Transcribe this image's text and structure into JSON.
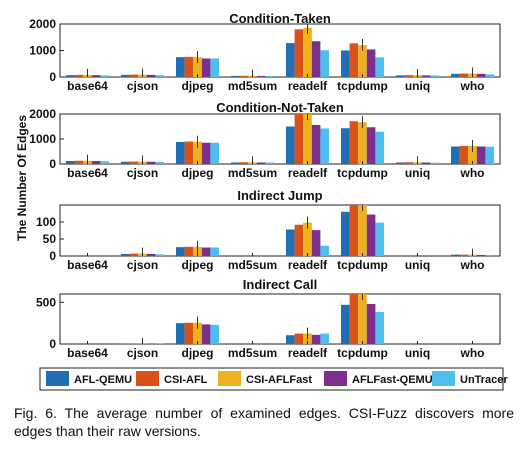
{
  "figure": {
    "ylabel": "The Number Of Edges",
    "caption": "Fig. 6. The average number of examined edges. CSI-Fuzz discovers more edges than their raw versions.",
    "colors": [
      "#1f6fb4",
      "#d95319",
      "#edb120",
      "#7e2f8e",
      "#4dbeee"
    ]
  },
  "chart_data": [
    {
      "type": "bar",
      "title": "Condition-Taken",
      "categories": [
        "base64",
        "cjson",
        "djpeg",
        "md5sum",
        "readelf",
        "tcpdump",
        "uniq",
        "who"
      ],
      "ylim": [
        0,
        2000
      ],
      "yticks": [
        0,
        1000,
        2000
      ],
      "series": [
        {
          "name": "AFL-QEMU",
          "values": [
            70,
            80,
            750,
            40,
            1280,
            1000,
            60,
            120
          ]
        },
        {
          "name": "CSI-AFL",
          "values": [
            80,
            90,
            760,
            45,
            1800,
            1270,
            70,
            130
          ]
        },
        {
          "name": "CSI-AFLFast",
          "values": [
            80,
            90,
            750,
            45,
            1860,
            1210,
            70,
            130
          ]
        },
        {
          "name": "AFLFast-QEMU",
          "values": [
            70,
            80,
            700,
            40,
            1350,
            1040,
            60,
            120
          ]
        },
        {
          "name": "UnTracer",
          "values": [
            60,
            70,
            700,
            40,
            1010,
            740,
            60,
            100
          ]
        }
      ]
    },
    {
      "type": "bar",
      "title": "Condition-Not-Taken",
      "categories": [
        "base64",
        "cjson",
        "djpeg",
        "md5sum",
        "readelf",
        "tcpdump",
        "uniq",
        "who"
      ],
      "ylim": [
        0,
        2000
      ],
      "yticks": [
        0,
        1000,
        2000
      ],
      "series": [
        {
          "name": "AFL-QEMU",
          "values": [
            120,
            90,
            880,
            60,
            1500,
            1430,
            60,
            700
          ]
        },
        {
          "name": "CSI-AFL",
          "values": [
            130,
            100,
            900,
            70,
            2020,
            1710,
            70,
            720
          ]
        },
        {
          "name": "CSI-AFLFast",
          "values": [
            130,
            100,
            890,
            70,
            2050,
            1670,
            70,
            720
          ]
        },
        {
          "name": "AFLFast-QEMU",
          "values": [
            120,
            90,
            850,
            60,
            1560,
            1470,
            60,
            700
          ]
        },
        {
          "name": "UnTracer",
          "values": [
            110,
            80,
            850,
            60,
            1420,
            1290,
            50,
            690
          ]
        }
      ]
    },
    {
      "type": "bar",
      "title": "Indirect Jump",
      "categories": [
        "base64",
        "cjson",
        "djpeg",
        "md5sum",
        "readelf",
        "tcpdump",
        "uniq",
        "who"
      ],
      "ylim": [
        0,
        150
      ],
      "yticks": [
        0,
        50,
        100
      ],
      "series": [
        {
          "name": "AFL-QEMU",
          "values": [
            0,
            6,
            26,
            0,
            78,
            130,
            0,
            4
          ]
        },
        {
          "name": "CSI-AFL",
          "values": [
            0,
            7,
            27,
            0,
            92,
            150,
            0,
            4
          ]
        },
        {
          "name": "CSI-AFLFast",
          "values": [
            0,
            7,
            27,
            0,
            98,
            150,
            0,
            4
          ]
        },
        {
          "name": "AFLFast-QEMU",
          "values": [
            0,
            6,
            25,
            0,
            76,
            122,
            0,
            3
          ]
        },
        {
          "name": "UnTracer",
          "values": [
            0,
            5,
            25,
            0,
            30,
            98,
            0,
            3
          ]
        }
      ]
    },
    {
      "type": "bar",
      "title": "Indirect Call",
      "categories": [
        "base64",
        "cjson",
        "djpeg",
        "md5sum",
        "readelf",
        "tcpdump",
        "uniq",
        "who"
      ],
      "ylim": [
        0,
        600
      ],
      "yticks": [
        0,
        500
      ],
      "series": [
        {
          "name": "AFL-QEMU",
          "values": [
            0,
            3,
            250,
            0,
            105,
            470,
            0,
            0
          ]
        },
        {
          "name": "CSI-AFL",
          "values": [
            0,
            3,
            255,
            0,
            125,
            600,
            0,
            0
          ]
        },
        {
          "name": "CSI-AFLFast",
          "values": [
            0,
            3,
            255,
            0,
            125,
            600,
            0,
            0
          ]
        },
        {
          "name": "AFLFast-QEMU",
          "values": [
            0,
            3,
            235,
            0,
            110,
            480,
            0,
            0
          ]
        },
        {
          "name": "UnTracer",
          "values": [
            0,
            3,
            230,
            0,
            125,
            385,
            0,
            0
          ]
        }
      ]
    }
  ]
}
